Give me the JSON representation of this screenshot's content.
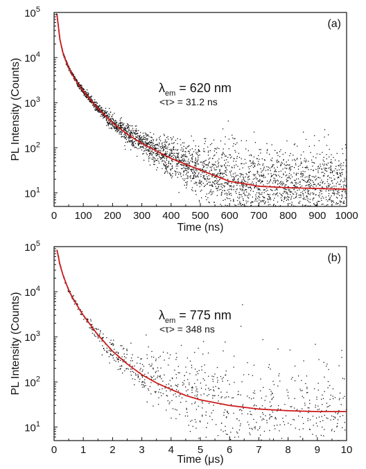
{
  "chart_data": [
    {
      "type": "scatter",
      "panel_label": "(a)",
      "xlabel": "Time (ns)",
      "ylabel": "PL Intensity (Counts)",
      "xlim": [
        0,
        1000
      ],
      "ylim": [
        5,
        100000
      ],
      "yscale": "log",
      "x_ticks": [
        "0",
        "100",
        "200",
        "300",
        "400",
        "500",
        "600",
        "700",
        "800",
        "900",
        "1000"
      ],
      "y_ticks": [
        {
          "base": "10",
          "exp": "1"
        },
        {
          "base": "10",
          "exp": "2"
        },
        {
          "base": "10",
          "exp": "3"
        },
        {
          "base": "10",
          "exp": "4"
        },
        {
          "base": "10",
          "exp": "5"
        }
      ],
      "annotation": {
        "lambda": "λ",
        "sub": "em",
        "rest": " = 620 nm",
        "tau": "<τ> = 31.2 ns"
      },
      "fit": {
        "color": "#cc1a1a",
        "x": [
          10,
          20,
          30,
          40,
          50,
          60,
          70,
          80,
          90,
          100,
          120,
          140,
          160,
          180,
          200,
          250,
          300,
          350,
          400,
          450,
          500,
          550,
          600,
          650,
          700,
          800,
          900,
          1000
        ],
        "y": [
          90000,
          25000,
          13000,
          8500,
          6000,
          4500,
          3500,
          2700,
          2200,
          1800,
          1250,
          880,
          640,
          480,
          360,
          200,
          125,
          85,
          58,
          43,
          32,
          24,
          18,
          16,
          14,
          13,
          12.5,
          12
        ]
      },
      "data_color": "#111111"
    },
    {
      "type": "scatter",
      "panel_label": "(b)",
      "xlabel": "Time (μs)",
      "ylabel": "PL Intensity (Counts)",
      "xlim": [
        0,
        10
      ],
      "ylim": [
        5,
        100000
      ],
      "yscale": "log",
      "x_ticks": [
        "0",
        "1",
        "2",
        "3",
        "4",
        "5",
        "6",
        "7",
        "8",
        "9",
        "10"
      ],
      "y_ticks": [
        {
          "base": "10",
          "exp": "1"
        },
        {
          "base": "10",
          "exp": "2"
        },
        {
          "base": "10",
          "exp": "3"
        },
        {
          "base": "10",
          "exp": "4"
        },
        {
          "base": "10",
          "exp": "5"
        }
      ],
      "annotation": {
        "lambda": "λ",
        "sub": "em",
        "rest": " = 775 nm",
        "tau": "<τ> = 348 ns"
      },
      "fit": {
        "color": "#cc1a1a",
        "x": [
          0.1,
          0.2,
          0.3,
          0.4,
          0.5,
          0.6,
          0.8,
          1.0,
          1.2,
          1.5,
          2.0,
          2.5,
          3.0,
          3.5,
          4.0,
          4.5,
          5.0,
          6.0,
          7.0,
          8.0,
          9.0,
          10.0
        ],
        "y": [
          85000,
          40000,
          24000,
          16000,
          11000,
          8000,
          4800,
          3000,
          2000,
          1100,
          480,
          250,
          145,
          95,
          68,
          50,
          40,
          30,
          25,
          23,
          22,
          22
        ]
      },
      "data_color": "#111111"
    }
  ]
}
